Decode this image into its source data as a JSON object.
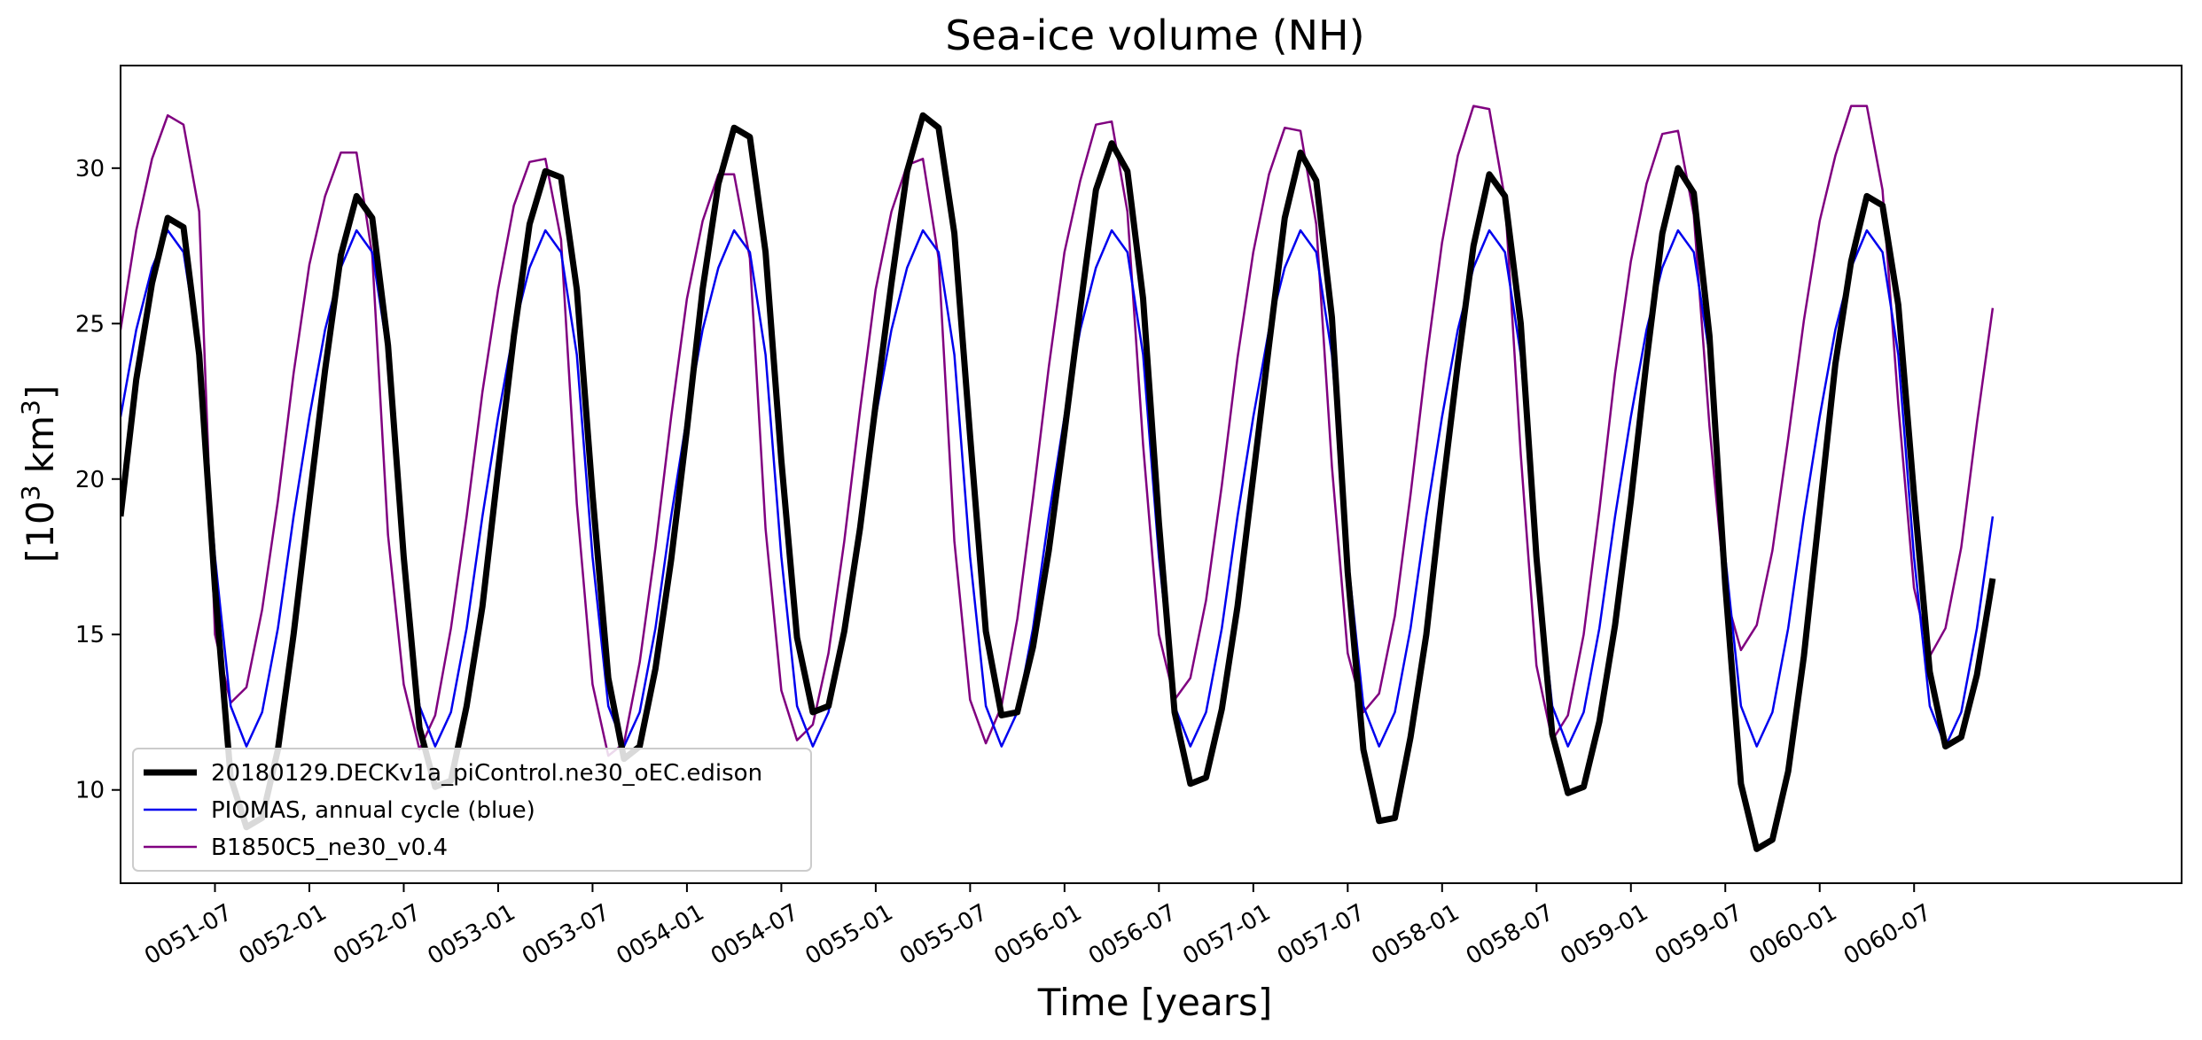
{
  "chart_data": {
    "type": "line",
    "title": "Sea-ice volume (NH)",
    "xlabel": "Time [years]",
    "ylabel_base": "[10",
    "ylabel_sup1": "3",
    "ylabel_mid": " km",
    "ylabel_sup2": "3",
    "ylabel_end": "]",
    "xlim": [
      50.0,
      60.917
    ],
    "ylim": [
      7,
      33.3
    ],
    "yticks": [
      10,
      15,
      20,
      25,
      30
    ],
    "xticks": [
      {
        "x": 50.5,
        "label": "0051-07"
      },
      {
        "x": 51.0,
        "label": "0052-01"
      },
      {
        "x": 51.5,
        "label": "0052-07"
      },
      {
        "x": 52.0,
        "label": "0053-01"
      },
      {
        "x": 52.5,
        "label": "0053-07"
      },
      {
        "x": 53.0,
        "label": "0054-01"
      },
      {
        "x": 53.5,
        "label": "0054-07"
      },
      {
        "x": 54.0,
        "label": "0055-01"
      },
      {
        "x": 54.5,
        "label": "0055-07"
      },
      {
        "x": 55.0,
        "label": "0056-01"
      },
      {
        "x": 55.5,
        "label": "0056-07"
      },
      {
        "x": 56.0,
        "label": "0057-01"
      },
      {
        "x": 56.5,
        "label": "0057-07"
      },
      {
        "x": 57.0,
        "label": "0058-01"
      },
      {
        "x": 57.5,
        "label": "0058-07"
      },
      {
        "x": 58.0,
        "label": "0059-01"
      },
      {
        "x": 58.5,
        "label": "0059-07"
      },
      {
        "x": 59.0,
        "label": "0060-01"
      },
      {
        "x": 59.5,
        "label": "0060-07"
      }
    ],
    "x_start": 50.0,
    "x_step": 0.08333,
    "legend_position": "lower-left",
    "series": [
      {
        "name": "20180129.DECKv1a_piControl.ne30_oEC.edison",
        "color": "#000000",
        "values": [
          18.8,
          23.2,
          26.3,
          28.4,
          28.1,
          24.0,
          16.5,
          10.4,
          8.8,
          9.1,
          11.3,
          15.0,
          19.3,
          23.5,
          27.2,
          29.1,
          28.4,
          24.3,
          17.5,
          12.0,
          10.1,
          10.3,
          12.7,
          15.9,
          20.3,
          24.6,
          28.2,
          29.9,
          29.7,
          26.1,
          19.5,
          13.6,
          11.0,
          11.4,
          13.9,
          17.4,
          21.6,
          26.1,
          29.5,
          31.3,
          31.0,
          27.3,
          20.6,
          14.9,
          12.5,
          12.7,
          15.1,
          18.4,
          22.4,
          26.3,
          29.9,
          31.7,
          31.3,
          27.9,
          21.4,
          15.1,
          12.4,
          12.5,
          14.6,
          17.7,
          21.5,
          25.5,
          29.3,
          30.8,
          29.9,
          25.8,
          18.6,
          12.5,
          10.2,
          10.4,
          12.6,
          15.9,
          20.1,
          24.3,
          28.4,
          30.5,
          29.6,
          25.2,
          17.0,
          11.3,
          9.0,
          9.1,
          11.7,
          15.0,
          19.5,
          23.7,
          27.5,
          29.8,
          29.1,
          25.0,
          17.5,
          11.8,
          9.9,
          10.1,
          12.2,
          15.3,
          19.3,
          23.8,
          27.9,
          30.0,
          29.2,
          24.6,
          16.6,
          10.2,
          8.1,
          8.4,
          10.6,
          14.3,
          19.0,
          23.7,
          27.0,
          29.1,
          28.8,
          25.6,
          19.5,
          13.8,
          11.4,
          11.7,
          13.7,
          16.8
        ]
      },
      {
        "name": "PIOMAS, annual cycle (blue)",
        "color": "#0000ee",
        "values": [
          22.0,
          24.8,
          26.8,
          28.0,
          27.3,
          24.0,
          17.5,
          12.7,
          11.4,
          12.5,
          15.2,
          18.8,
          22.0,
          24.8,
          26.8,
          28.0,
          27.3,
          24.0,
          17.5,
          12.7,
          11.4,
          12.5,
          15.2,
          18.8,
          22.0,
          24.8,
          26.8,
          28.0,
          27.3,
          24.0,
          17.5,
          12.7,
          11.4,
          12.5,
          15.2,
          18.8,
          22.0,
          24.8,
          26.8,
          28.0,
          27.3,
          24.0,
          17.5,
          12.7,
          11.4,
          12.5,
          15.2,
          18.8,
          22.0,
          24.8,
          26.8,
          28.0,
          27.3,
          24.0,
          17.5,
          12.7,
          11.4,
          12.5,
          15.2,
          18.8,
          22.0,
          24.8,
          26.8,
          28.0,
          27.3,
          24.0,
          17.5,
          12.7,
          11.4,
          12.5,
          15.2,
          18.8,
          22.0,
          24.8,
          26.8,
          28.0,
          27.3,
          24.0,
          17.5,
          12.7,
          11.4,
          12.5,
          15.2,
          18.8,
          22.0,
          24.8,
          26.8,
          28.0,
          27.3,
          24.0,
          17.5,
          12.7,
          11.4,
          12.5,
          15.2,
          18.8,
          22.0,
          24.8,
          26.8,
          28.0,
          27.3,
          24.0,
          17.5,
          12.7,
          11.4,
          12.5,
          15.2,
          18.8,
          22.0,
          24.8,
          26.8,
          28.0,
          27.3,
          24.0,
          17.5,
          12.7,
          11.4,
          12.5,
          15.2,
          18.8
        ]
      },
      {
        "name": "B1850C5_ne30_v0.4",
        "color": "#800080",
        "values": [
          24.8,
          28.0,
          30.3,
          31.7,
          31.4,
          28.6,
          15.0,
          12.8,
          13.3,
          15.8,
          19.3,
          23.4,
          26.9,
          29.1,
          30.5,
          30.5,
          27.2,
          18.2,
          13.4,
          11.3,
          12.4,
          15.2,
          18.8,
          22.8,
          26.1,
          28.8,
          30.2,
          30.3,
          27.7,
          19.2,
          13.4,
          11.1,
          11.5,
          14.1,
          17.8,
          22.0,
          25.8,
          28.3,
          29.8,
          29.8,
          27.1,
          18.4,
          13.2,
          11.6,
          12.1,
          14.4,
          18.0,
          22.2,
          26.1,
          28.6,
          30.1,
          30.3,
          27.1,
          18.0,
          12.9,
          11.5,
          12.7,
          15.5,
          19.4,
          23.6,
          27.3,
          29.6,
          31.4,
          31.5,
          28.6,
          21.1,
          15.0,
          12.9,
          13.6,
          16.1,
          19.8,
          23.9,
          27.3,
          29.8,
          31.3,
          31.2,
          28.2,
          20.4,
          14.4,
          12.5,
          13.1,
          15.6,
          19.5,
          23.8,
          27.6,
          30.4,
          32.0,
          31.9,
          29.0,
          20.8,
          14.0,
          11.6,
          12.4,
          15.0,
          19.0,
          23.4,
          27.0,
          29.5,
          31.1,
          31.2,
          28.5,
          21.7,
          16.3,
          14.5,
          15.3,
          17.7,
          21.3,
          25.1,
          28.3,
          30.4,
          32.0,
          32.0,
          29.3,
          22.4,
          16.5,
          14.3,
          15.2,
          17.8,
          21.8,
          25.5
        ]
      }
    ]
  }
}
